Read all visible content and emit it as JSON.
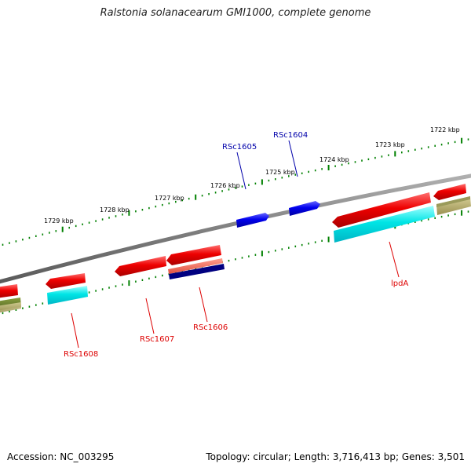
{
  "title": "Ralstonia solanacearum GMI1000, complete genome",
  "footer": {
    "accession": "Accession: NC_003295",
    "summary": "Topology: circular; Length: 3,716,413 bp; Genes: 3,501"
  },
  "scale": {
    "upper_labels": [
      "1722 kbp",
      "1723 kbp",
      "1724 kbp",
      "1725 kbp",
      "1726 kbp",
      "1727 kbp",
      "1728 kbp",
      "1729 kbp"
    ],
    "lower_labels": []
  },
  "gene_labels": [
    {
      "name": "RSc1604",
      "color": "#0000aa"
    },
    {
      "name": "RSc1605",
      "color": "#0000aa"
    },
    {
      "name": "RSc1606",
      "color": "#dd0000"
    },
    {
      "name": "RSc1607",
      "color": "#dd0000"
    },
    {
      "name": "RSc1608",
      "color": "#dd0000"
    },
    {
      "name": "lpdA",
      "color": "#dd0000"
    }
  ],
  "colors": {
    "backbone": "#808080",
    "forward_cds": "#0000ee",
    "reverse_cds": "#ee0000",
    "rna_cyan": "#00e5e5",
    "pseudo_salmon": "#f07060",
    "dark_navy": "#000080",
    "olive_dark": "#6b7f2a",
    "olive_light": "#b8b070",
    "tick_green": "#008000"
  }
}
